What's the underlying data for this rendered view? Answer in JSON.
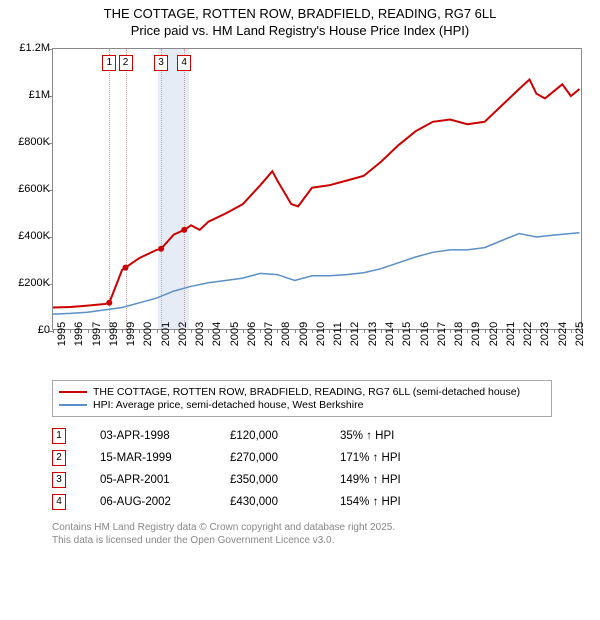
{
  "title": {
    "line1": "THE COTTAGE, ROTTEN ROW, BRADFIELD, READING, RG7 6LL",
    "line2": "Price paid vs. HM Land Registry's House Price Index (HPI)"
  },
  "chart": {
    "type": "line",
    "background_color": "#ffffff",
    "border_color": "#888888",
    "x": {
      "min": 1995,
      "max": 2025.7,
      "ticks": [
        1995,
        1996,
        1997,
        1998,
        1999,
        2000,
        2001,
        2002,
        2003,
        2004,
        2005,
        2006,
        2007,
        2008,
        2009,
        2010,
        2011,
        2012,
        2013,
        2014,
        2015,
        2016,
        2017,
        2018,
        2019,
        2020,
        2021,
        2022,
        2023,
        2024,
        2025
      ],
      "label_fontsize": 11
    },
    "y": {
      "min": 0,
      "max": 1200000,
      "ticks": [
        0,
        200000,
        400000,
        600000,
        800000,
        1000000,
        1200000
      ],
      "tick_labels": [
        "£0",
        "£200K",
        "£400K",
        "£600K",
        "£800K",
        "£1M",
        "£1.2M"
      ],
      "label_fontsize": 11
    },
    "markers_band": {
      "from": 2001.1,
      "to": 2002.9,
      "color": "#e6ecf5"
    },
    "sale_markers": [
      {
        "n": "1",
        "year": 1998.26
      },
      {
        "n": "2",
        "year": 1999.2
      },
      {
        "n": "3",
        "year": 2001.26
      },
      {
        "n": "4",
        "year": 2002.6
      }
    ],
    "marker_line_color": "#d0a0a0",
    "marker_box_border": "#d00000",
    "series": [
      {
        "name": "price_paid",
        "label": "THE COTTAGE, ROTTEN ROW, BRADFIELD, READING, RG7 6LL (semi-detached house)",
        "color": "#cc0000",
        "width": 2,
        "points": [
          [
            1995.0,
            100000
          ],
          [
            1996.0,
            102000
          ],
          [
            1997.0,
            108000
          ],
          [
            1998.0,
            115000
          ],
          [
            1998.26,
            120000
          ],
          [
            1999.0,
            260000
          ],
          [
            1999.2,
            270000
          ],
          [
            2000.0,
            310000
          ],
          [
            2001.0,
            345000
          ],
          [
            2001.26,
            350000
          ],
          [
            2002.0,
            410000
          ],
          [
            2002.6,
            430000
          ],
          [
            2003.0,
            450000
          ],
          [
            2003.5,
            430000
          ],
          [
            2004.0,
            465000
          ],
          [
            2005.0,
            500000
          ],
          [
            2006.0,
            540000
          ],
          [
            2007.0,
            620000
          ],
          [
            2007.7,
            680000
          ],
          [
            2008.0,
            640000
          ],
          [
            2008.8,
            540000
          ],
          [
            2009.2,
            530000
          ],
          [
            2010.0,
            610000
          ],
          [
            2011.0,
            620000
          ],
          [
            2012.0,
            640000
          ],
          [
            2013.0,
            660000
          ],
          [
            2014.0,
            720000
          ],
          [
            2015.0,
            790000
          ],
          [
            2016.0,
            850000
          ],
          [
            2017.0,
            890000
          ],
          [
            2018.0,
            900000
          ],
          [
            2019.0,
            880000
          ],
          [
            2020.0,
            890000
          ],
          [
            2021.0,
            960000
          ],
          [
            2022.0,
            1030000
          ],
          [
            2022.6,
            1070000
          ],
          [
            2023.0,
            1010000
          ],
          [
            2023.5,
            990000
          ],
          [
            2024.0,
            1020000
          ],
          [
            2024.5,
            1050000
          ],
          [
            2025.0,
            1000000
          ],
          [
            2025.5,
            1030000
          ]
        ],
        "sale_dots": [
          [
            1998.26,
            120000
          ],
          [
            1999.2,
            270000
          ],
          [
            2001.26,
            350000
          ],
          [
            2002.6,
            430000
          ]
        ]
      },
      {
        "name": "hpi",
        "label": "HPI: Average price, semi-detached house, West Berkshire",
        "color": "#5b8fc7",
        "width": 1.5,
        "points": [
          [
            1995.0,
            72000
          ],
          [
            1996.0,
            75000
          ],
          [
            1997.0,
            80000
          ],
          [
            1998.0,
            90000
          ],
          [
            1999.0,
            100000
          ],
          [
            2000.0,
            120000
          ],
          [
            2001.0,
            140000
          ],
          [
            2002.0,
            170000
          ],
          [
            2003.0,
            190000
          ],
          [
            2004.0,
            205000
          ],
          [
            2005.0,
            215000
          ],
          [
            2006.0,
            225000
          ],
          [
            2007.0,
            245000
          ],
          [
            2008.0,
            240000
          ],
          [
            2009.0,
            215000
          ],
          [
            2010.0,
            235000
          ],
          [
            2011.0,
            235000
          ],
          [
            2012.0,
            240000
          ],
          [
            2013.0,
            248000
          ],
          [
            2014.0,
            265000
          ],
          [
            2015.0,
            290000
          ],
          [
            2016.0,
            315000
          ],
          [
            2017.0,
            335000
          ],
          [
            2018.0,
            345000
          ],
          [
            2019.0,
            345000
          ],
          [
            2020.0,
            355000
          ],
          [
            2021.0,
            385000
          ],
          [
            2022.0,
            415000
          ],
          [
            2023.0,
            400000
          ],
          [
            2024.0,
            408000
          ],
          [
            2025.0,
            415000
          ],
          [
            2025.5,
            418000
          ]
        ]
      }
    ]
  },
  "legend": {
    "items": [
      {
        "color": "#cc0000",
        "width": 2,
        "label": "THE COTTAGE, ROTTEN ROW, BRADFIELD, READING, RG7 6LL (semi-detached house)"
      },
      {
        "color": "#5b8fc7",
        "width": 1.5,
        "label": "HPI: Average price, semi-detached house, West Berkshire"
      }
    ]
  },
  "sales": [
    {
      "n": "1",
      "date": "03-APR-1998",
      "price": "£120,000",
      "hpi": "35% ↑ HPI"
    },
    {
      "n": "2",
      "date": "15-MAR-1999",
      "price": "£270,000",
      "hpi": "171% ↑ HPI"
    },
    {
      "n": "3",
      "date": "05-APR-2001",
      "price": "£350,000",
      "hpi": "149% ↑ HPI"
    },
    {
      "n": "4",
      "date": "06-AUG-2002",
      "price": "£430,000",
      "hpi": "154% ↑ HPI"
    }
  ],
  "footer": {
    "line1": "Contains HM Land Registry data © Crown copyright and database right 2025.",
    "line2": "This data is licensed under the Open Government Licence v3.0."
  }
}
